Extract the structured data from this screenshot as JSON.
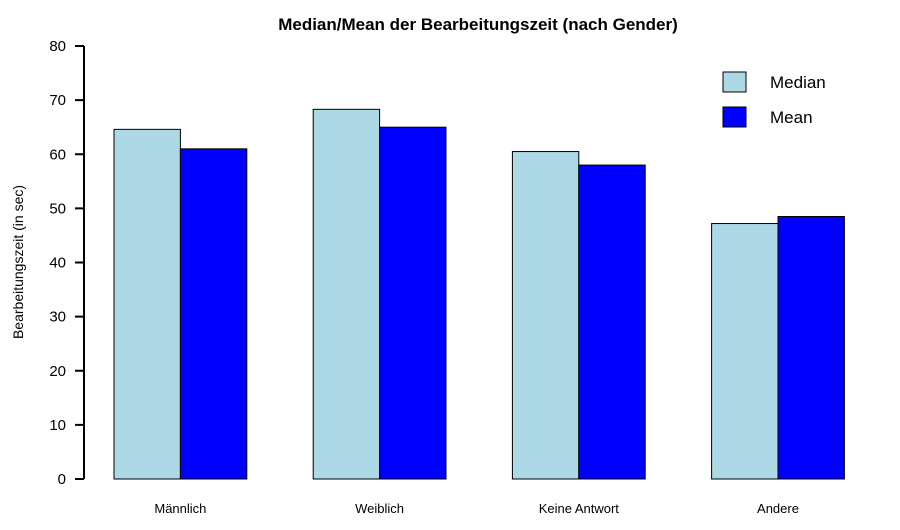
{
  "chart_data": {
    "type": "bar",
    "title": "Median/Mean der Bearbeitungszeit (nach Gender)",
    "xlabel": "",
    "ylabel": "Bearbeitungszeit (in sec)",
    "ylim": [
      0,
      80
    ],
    "yticks": [
      0,
      10,
      20,
      30,
      40,
      50,
      60,
      70,
      80
    ],
    "categories": [
      "Männlich",
      "Weiblich",
      "Keine Antwort",
      "Andere"
    ],
    "series": [
      {
        "name": "Median",
        "color": "#add8e6",
        "values": [
          64.6,
          68.3,
          60.5,
          47.2
        ]
      },
      {
        "name": "Mean",
        "color": "#0000ff",
        "values": [
          61.0,
          65.0,
          58.0,
          48.5
        ]
      }
    ],
    "legend_position": "top-right",
    "grid": false
  }
}
